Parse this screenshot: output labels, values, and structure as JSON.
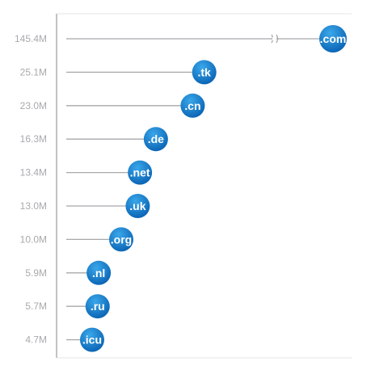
{
  "chart_data": {
    "type": "bar",
    "categories": [
      ".com",
      ".tk",
      ".cn",
      ".de",
      ".net",
      ".uk",
      ".org",
      ".nl",
      ".ru",
      ".icu"
    ],
    "values": [
      145.4,
      25.1,
      23.0,
      16.3,
      13.4,
      13.0,
      10.0,
      5.9,
      5.7,
      4.7
    ],
    "value_labels": [
      "145.4M",
      "25.1M",
      "23.0M",
      "16.3M",
      "13.4M",
      "13.0M",
      "10.0M",
      "5.9M",
      "5.7M",
      "4.7M"
    ],
    "orientation": "horizontal",
    "axis_break": true,
    "grid": false,
    "title": "",
    "xlabel": "",
    "ylabel": "",
    "colors": {
      "line": "#a8a8ab",
      "axis": "#9a9a9e",
      "bubble_light": "#3aa7ea",
      "bubble_dark": "#0c66b6",
      "tick_text": "#a9a9ad"
    }
  }
}
